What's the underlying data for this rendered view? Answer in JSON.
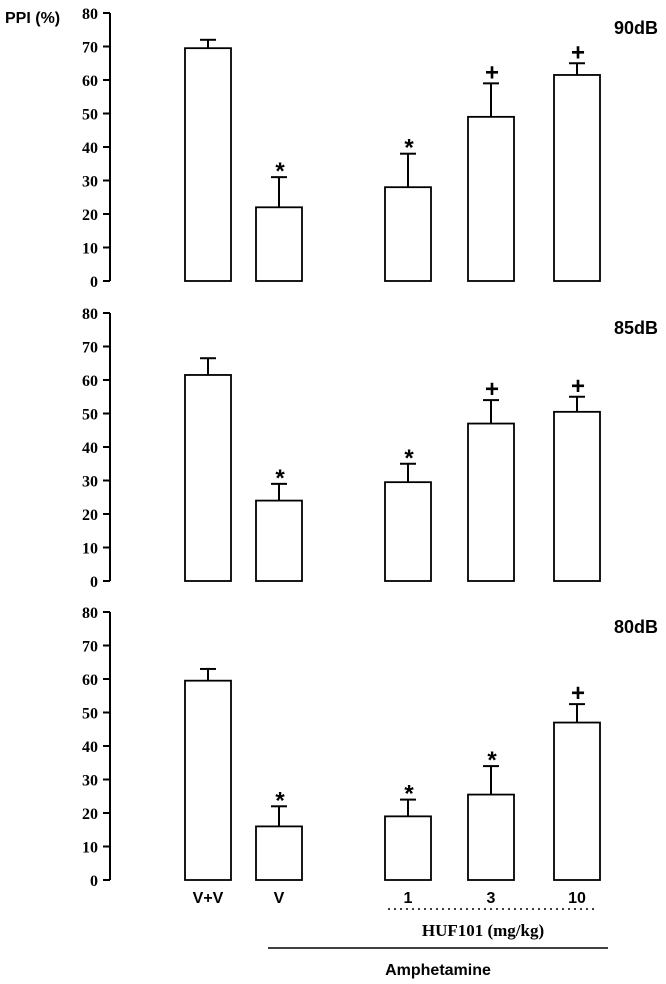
{
  "chart_data": {
    "type": "bar",
    "ylabel": "PPI (%)",
    "ylim": [
      0,
      80
    ],
    "yticks": [
      0,
      10,
      20,
      30,
      40,
      50,
      60,
      70,
      80
    ],
    "categories": [
      "V+V",
      "V",
      "1",
      "3",
      "10"
    ],
    "group_labels": {
      "treatment": "HUF101 (mg/kg)",
      "pretreatment": "Amphetamine"
    },
    "panels": [
      {
        "label": "90dB",
        "values": [
          69.5,
          22,
          28,
          49,
          61.5
        ],
        "errors": [
          2.5,
          9,
          10,
          10,
          3.5
        ],
        "significance": [
          "",
          "*",
          "*",
          "+",
          "+"
        ]
      },
      {
        "label": "85dB",
        "values": [
          61.5,
          24,
          29.5,
          47,
          50.5
        ],
        "errors": [
          5,
          5,
          5.5,
          7,
          4.5
        ],
        "significance": [
          "",
          "*",
          "*",
          "+",
          "+"
        ]
      },
      {
        "label": "80dB",
        "values": [
          59.5,
          16,
          19,
          25.5,
          47
        ],
        "errors": [
          3.5,
          6,
          5,
          8.5,
          5.5
        ],
        "significance": [
          "",
          "*",
          "*",
          "*",
          "+"
        ]
      }
    ]
  }
}
